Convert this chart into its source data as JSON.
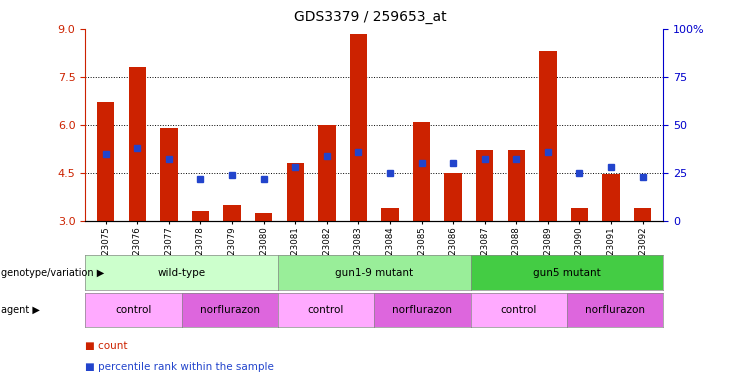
{
  "title": "GDS3379 / 259653_at",
  "samples": [
    "GSM323075",
    "GSM323076",
    "GSM323077",
    "GSM323078",
    "GSM323079",
    "GSM323080",
    "GSM323081",
    "GSM323082",
    "GSM323083",
    "GSM323084",
    "GSM323085",
    "GSM323086",
    "GSM323087",
    "GSM323088",
    "GSM323089",
    "GSM323090",
    "GSM323091",
    "GSM323092"
  ],
  "bar_values": [
    6.7,
    7.8,
    5.9,
    3.3,
    3.5,
    3.25,
    4.8,
    6.0,
    8.85,
    3.4,
    6.1,
    4.5,
    5.2,
    5.2,
    8.3,
    3.4,
    4.45,
    3.4
  ],
  "percentile_values": [
    35,
    38,
    32,
    22,
    24,
    22,
    28,
    34,
    36,
    25,
    30,
    30,
    32,
    32,
    36,
    25,
    28,
    23
  ],
  "bar_color": "#cc2200",
  "square_color": "#2244cc",
  "ylim_left": [
    3,
    9
  ],
  "ylim_right": [
    0,
    100
  ],
  "yticks_left": [
    3,
    4.5,
    6,
    7.5,
    9
  ],
  "yticks_right": [
    0,
    25,
    50,
    75,
    100
  ],
  "ytick_labels_right": [
    "0",
    "25",
    "50",
    "75",
    "100%"
  ],
  "hlines": [
    4.5,
    6.0,
    7.5
  ],
  "genotype_groups": [
    {
      "label": "wild-type",
      "start": 0,
      "end": 6,
      "color": "#ccffcc"
    },
    {
      "label": "gun1-9 mutant",
      "start": 6,
      "end": 12,
      "color": "#99ee99"
    },
    {
      "label": "gun5 mutant",
      "start": 12,
      "end": 18,
      "color": "#44cc44"
    }
  ],
  "agent_groups": [
    {
      "label": "control",
      "start": 0,
      "end": 3,
      "color": "#ffaaff"
    },
    {
      "label": "norflurazon",
      "start": 3,
      "end": 6,
      "color": "#dd66dd"
    },
    {
      "label": "control",
      "start": 6,
      "end": 9,
      "color": "#ffaaff"
    },
    {
      "label": "norflurazon",
      "start": 9,
      "end": 12,
      "color": "#dd66dd"
    },
    {
      "label": "control",
      "start": 12,
      "end": 15,
      "color": "#ffaaff"
    },
    {
      "label": "norflurazon",
      "start": 15,
      "end": 18,
      "color": "#dd66dd"
    }
  ],
  "genotype_label": "genotype/variation",
  "agent_label": "agent",
  "legend_count_color": "#cc2200",
  "legend_pct_color": "#2244cc",
  "bar_width": 0.55,
  "left_tick_color": "#cc2200",
  "right_tick_color": "#0000cc"
}
